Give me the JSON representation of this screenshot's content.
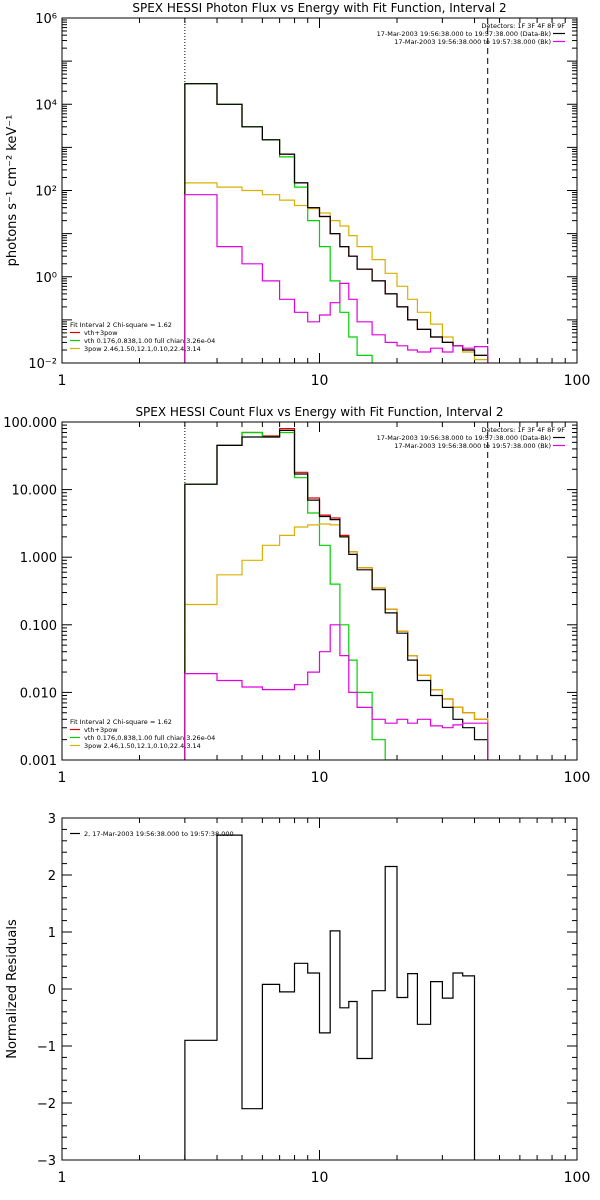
{
  "colors": {
    "background": "#ffffff",
    "axis": "#000000",
    "data": "#000000",
    "total": "#e00000",
    "thermal": "#00d000",
    "powerlaw": "#d8b000",
    "background_spec": "#e000e0"
  },
  "chart_data": [
    {
      "type": "line",
      "step": true,
      "title": "SPEX HESSI Photon Flux vs Energy with Fit Function, Interval 2",
      "xlabel": "",
      "ylabel": "photons s⁻¹ cm⁻² keV⁻¹",
      "xscale": "log",
      "yscale": "log",
      "xlim": [
        1,
        100
      ],
      "ylim": [
        0.01,
        1000000
      ],
      "xticks": [
        "1",
        "10",
        "100"
      ],
      "yticks": [
        "10⁻²",
        "10⁰",
        "10²",
        "10⁴",
        "10⁶"
      ],
      "vlines": [
        {
          "x": 3,
          "style": "dotted"
        },
        {
          "x": 45,
          "style": "dashed"
        }
      ],
      "legend_top_right": [
        "Detectors: 1F 3F 4F 8F 9F",
        "17-Mar-2003 19:56:38.000 to 19:57:38.000 (Data-Bk)",
        "17-Mar-2003 19:56:38.000 to 19:57:38.000 (Bk)"
      ],
      "legend_bottom_left": [
        "Fit Interval 2   Chi-square = 1.62",
        "vth+3pow",
        "vth 0.176,0.838,1.00  full chian 3.26e-04",
        "3pow 2.46,1.50,12.1,0.10,22.4,3.14"
      ],
      "edges": [
        3,
        4,
        5,
        6,
        7,
        8,
        9,
        10,
        11,
        12,
        13,
        14,
        16,
        18,
        20,
        22,
        24,
        27,
        30,
        33,
        36,
        40,
        45,
        50
      ],
      "series": [
        {
          "name": "vth+3pow",
          "color_key": "total",
          "values": [
            30000,
            10000,
            3000,
            1500,
            700,
            150,
            40,
            25,
            10,
            5,
            3,
            1.5,
            0.8,
            0.4,
            0.2,
            0.1,
            0.06,
            0.04,
            0.03,
            0.025,
            0.02,
            0.015
          ]
        },
        {
          "name": "vth 0.176,0.838,1.00  full chian 3.26e-04",
          "color_key": "thermal",
          "values": [
            30000,
            10000,
            3000,
            1500,
            600,
            120,
            20,
            5,
            0.8,
            0.15,
            0.04,
            0.015
          ]
        },
        {
          "name": "3pow 2.46,1.50,12.1,0.10,22.4,3.14",
          "color_key": "powerlaw",
          "values": [
            150,
            120,
            100,
            80,
            60,
            45,
            38,
            30,
            20,
            15,
            9,
            5,
            2.5,
            1.2,
            0.6,
            0.3,
            0.15,
            0.08,
            0.04,
            0.025,
            0.018,
            0.012
          ]
        },
        {
          "name": "17-Mar-2003 19:56:38.000 to 19:57:38.000 (Data-Bk)",
          "color_key": "data",
          "values": [
            30000,
            10000,
            3000,
            1500,
            700,
            150,
            40,
            25,
            10,
            5,
            3,
            1.5,
            0.8,
            0.4,
            0.2,
            0.1,
            0.06,
            0.04,
            0.03,
            0.025,
            0.02,
            0.015
          ]
        },
        {
          "name": "17-Mar-2003 19:56:38.000 to 19:57:38.000 (Bk)",
          "color_key": "background_spec",
          "values": [
            80,
            5,
            2,
            0.8,
            0.3,
            0.15,
            0.09,
            0.13,
            0.25,
            0.7,
            0.3,
            0.09,
            0.045,
            0.03,
            0.025,
            0.02,
            0.018,
            0.022,
            0.018,
            0.025,
            0.022,
            0.024
          ]
        }
      ]
    },
    {
      "type": "line",
      "step": true,
      "title": "SPEX HESSI Count Flux vs Energy with Fit Function, Interval 2",
      "xlabel": "",
      "ylabel": "",
      "xscale": "log",
      "yscale": "log",
      "xlim": [
        1,
        100
      ],
      "ylim": [
        0.001,
        100
      ],
      "xticks": [
        "1",
        "10",
        "100"
      ],
      "yticks": [
        "0.001",
        "0.010",
        "0.100",
        "1.000",
        "10.000",
        "100.000"
      ],
      "vlines": [
        {
          "x": 3,
          "style": "dotted"
        },
        {
          "x": 45,
          "style": "dashed"
        }
      ],
      "legend_top_right": [
        "Detectors: 1F 3F 4F 8F 9F",
        "17-Mar-2003 19:56:38.000 to 19:57:38.000 (Data-Bk)",
        "17-Mar-2003 19:56:38.000 to 19:57:38.000 (Bk)"
      ],
      "legend_bottom_left": [
        "Fit Interval 2   Chi-square = 1.62",
        "vth+3pow",
        "vth 0.176,0.838,1.00  full chian 3.26e-04",
        "3pow 2.46,1.50,12.1,0.10,22.4,3.14"
      ],
      "edges": [
        3,
        4,
        5,
        6,
        7,
        8,
        9,
        10,
        11,
        12,
        13,
        14,
        16,
        18,
        20,
        22,
        24,
        27,
        30,
        33,
        36,
        40,
        45,
        50
      ],
      "series": [
        {
          "name": "vth+3pow",
          "color_key": "total",
          "values": [
            12,
            45,
            70,
            62,
            80,
            18,
            7.5,
            4.2,
            3.8,
            2.1,
            1.2,
            0.7,
            0.35,
            0.17,
            0.08,
            0.035,
            0.018,
            0.011,
            0.008,
            0.006,
            0.005,
            0.004
          ]
        },
        {
          "name": "vth 0.176,0.838,1.00  full chian 3.26e-04",
          "color_key": "thermal",
          "values": [
            12,
            45,
            70,
            60,
            70,
            15,
            4.5,
            1.5,
            0.4,
            0.1,
            0.03,
            0.01,
            0.002,
            0.0005
          ]
        },
        {
          "name": "3pow 2.46,1.50,12.1,0.10,22.4,3.14",
          "color_key": "powerlaw",
          "values": [
            0.2,
            0.55,
            0.9,
            1.5,
            2.1,
            2.8,
            3.0,
            3.1,
            3.0,
            2.0,
            1.2,
            0.7,
            0.35,
            0.17,
            0.08,
            0.035,
            0.018,
            0.011,
            0.008,
            0.006,
            0.005,
            0.004
          ]
        },
        {
          "name": "17-Mar-2003 19:56:38.000 to 19:57:38.000 (Data-Bk)",
          "color_key": "data",
          "values": [
            12,
            45,
            60,
            60,
            75,
            17,
            7,
            4,
            3.6,
            2.0,
            1.1,
            0.65,
            0.33,
            0.15,
            0.075,
            0.03,
            0.015,
            0.009,
            0.006,
            0.004,
            0.003,
            0.002
          ]
        },
        {
          "name": "17-Mar-2003 19:56:38.000 to 19:57:38.000 (Bk)",
          "color_key": "background_spec",
          "values": [
            0.019,
            0.015,
            0.012,
            0.011,
            0.011,
            0.013,
            0.02,
            0.04,
            0.1,
            0.035,
            0.01,
            0.006,
            0.004,
            0.0035,
            0.004,
            0.0035,
            0.004,
            0.0032,
            0.003,
            0.0033,
            0.0035,
            0.0035
          ]
        }
      ]
    },
    {
      "type": "line",
      "step": true,
      "title": "",
      "xlabel": "",
      "ylabel": "Normalized Residuals",
      "xscale": "log",
      "yscale": "linear",
      "xlim": [
        1,
        100
      ],
      "ylim": [
        -3,
        3
      ],
      "xticks": [
        "1",
        "10",
        "100"
      ],
      "yticks": [
        "−3",
        "−2",
        "−1",
        "0",
        "1",
        "2",
        "3"
      ],
      "legend_top_left": [
        "2, 17-Mar-2003 19:56:38.000 to 19:57:38.000"
      ],
      "edges": [
        3,
        4,
        5,
        6,
        7,
        8,
        9,
        10,
        11,
        12,
        13,
        14,
        16,
        18,
        20,
        22,
        24,
        27,
        30,
        33,
        36,
        40,
        45
      ],
      "series": [
        {
          "color_key": "data",
          "values": [
            -0.9,
            2.7,
            -2.1,
            0.08,
            -0.05,
            0.45,
            0.28,
            -0.77,
            1.02,
            -0.33,
            -0.22,
            -1.22,
            -0.03,
            2.15,
            -0.15,
            0.27,
            -0.62,
            0.13,
            -0.16,
            0.28,
            0.23
          ]
        }
      ]
    }
  ]
}
